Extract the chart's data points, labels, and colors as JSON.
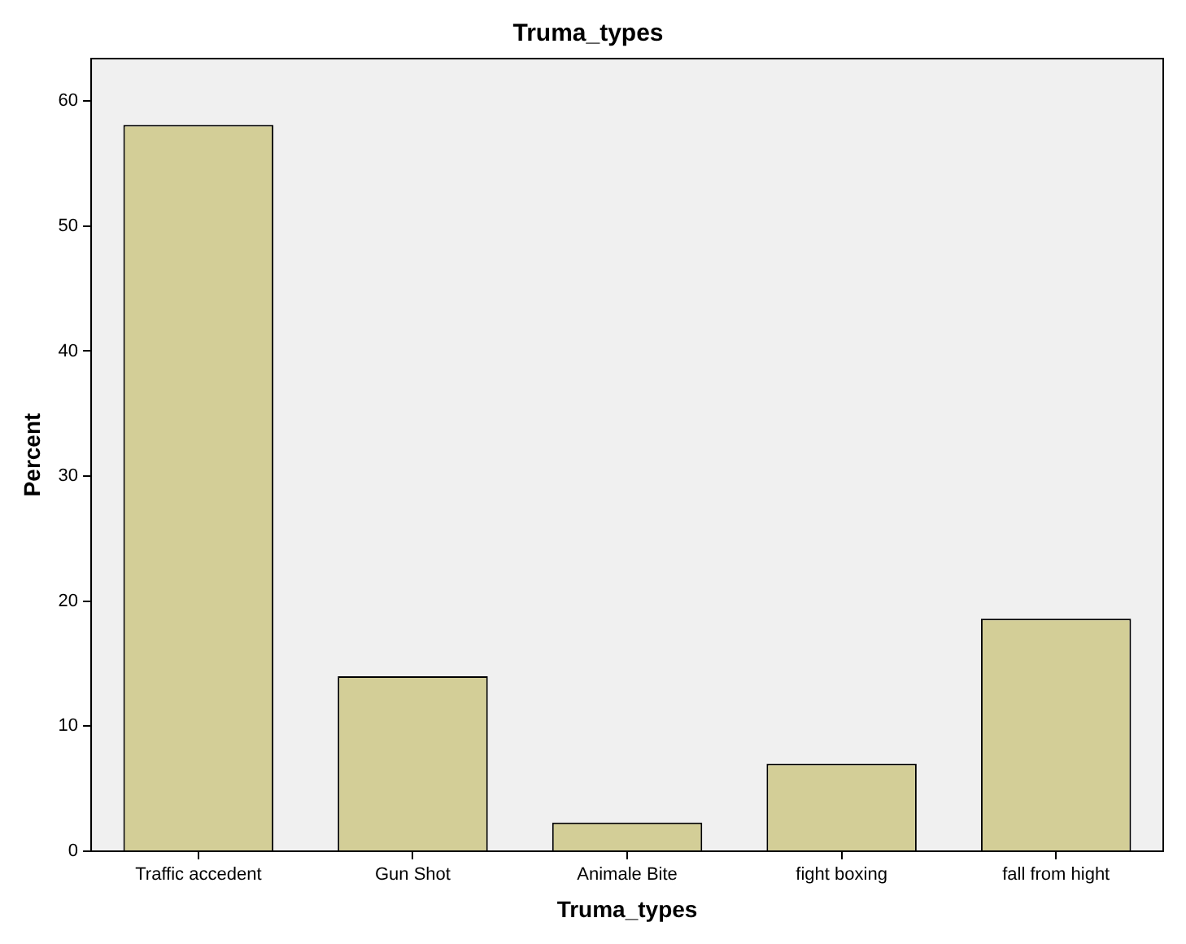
{
  "chart_data": {
    "type": "bar",
    "title": "Truma_types",
    "xlabel": "Truma_types",
    "ylabel": "Percent",
    "categories": [
      "Traffic accedent",
      "Gun Shot",
      "Animale Bite",
      "fight boxing",
      "fall from hight"
    ],
    "values": [
      58.1,
      14.0,
      2.3,
      7.0,
      18.6
    ],
    "color": "#d3ce97",
    "ylim": [
      0,
      63.4
    ],
    "yticks": [
      0,
      10,
      20,
      30,
      40,
      50,
      60
    ],
    "grid": false,
    "legend": false
  }
}
